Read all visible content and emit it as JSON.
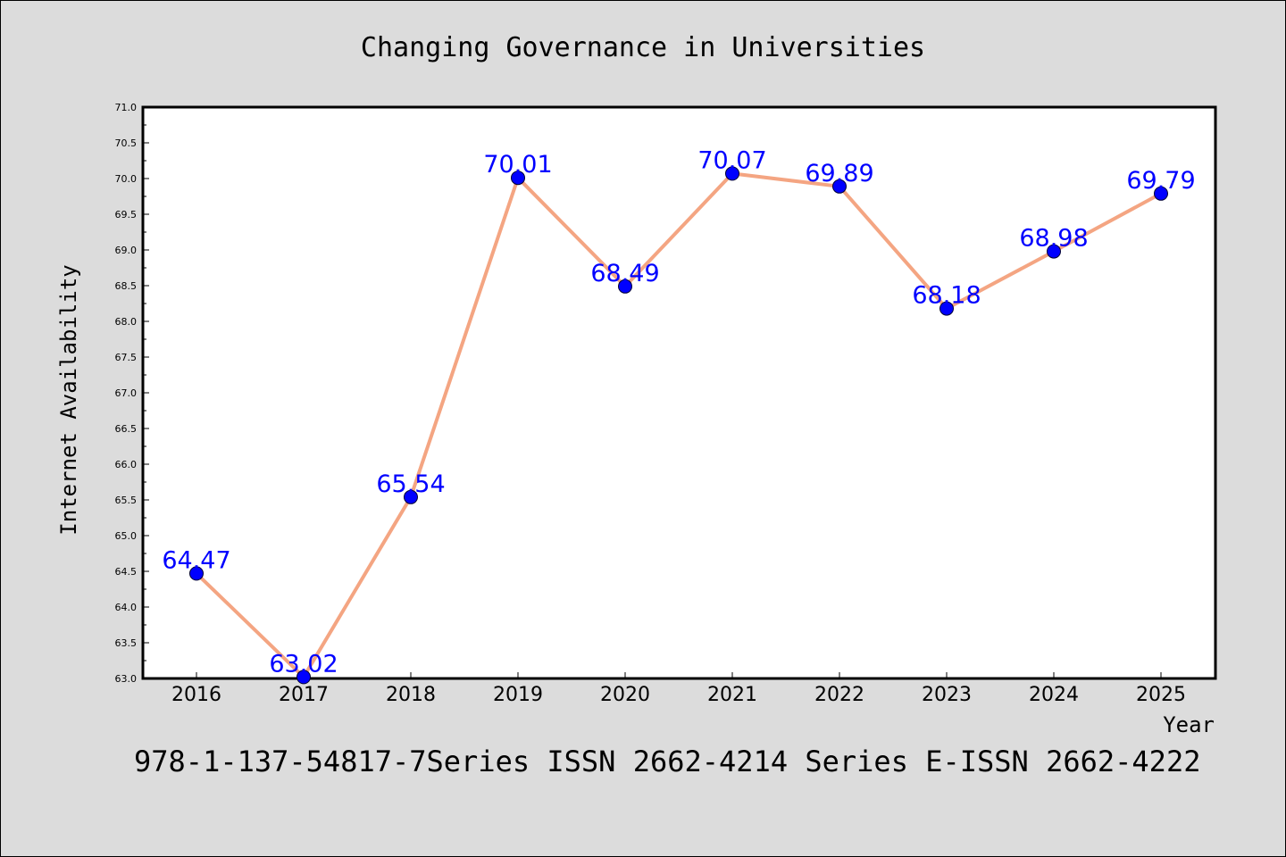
{
  "chart_data": {
    "type": "line",
    "title": "Changing Governance in Universities",
    "xlabel": "Year",
    "ylabel": "Internet Availability",
    "categories": [
      "2016",
      "2017",
      "2018",
      "2019",
      "2020",
      "2021",
      "2022",
      "2023",
      "2024",
      "2025"
    ],
    "series": [
      {
        "values": [
          64.47,
          63.02,
          65.54,
          70.01,
          68.49,
          70.07,
          69.89,
          68.18,
          68.98,
          69.79
        ],
        "labels": [
          "64.47",
          "63.02",
          "65.54",
          "70.01",
          "68.49",
          "70.07",
          "69.89",
          "68.18",
          "68.98",
          "69.79"
        ],
        "line_color": "#f4a582",
        "marker_color": "#0000ff"
      }
    ],
    "ylim": [
      63.0,
      71.0
    ],
    "yticks": [
      "63.0",
      "63.5",
      "64.0",
      "64.5",
      "65.0",
      "65.5",
      "66.0",
      "66.5",
      "67.0",
      "67.5",
      "68.0",
      "68.5",
      "69.0",
      "69.5",
      "70.0",
      "70.5",
      "71.0"
    ],
    "data_label_color": "#0000ff",
    "grid": false,
    "legend": "none"
  },
  "footer": {
    "text": "978-1-137-54817-7Series ISSN 2662-4214 Series E-ISSN 2662-4222"
  }
}
